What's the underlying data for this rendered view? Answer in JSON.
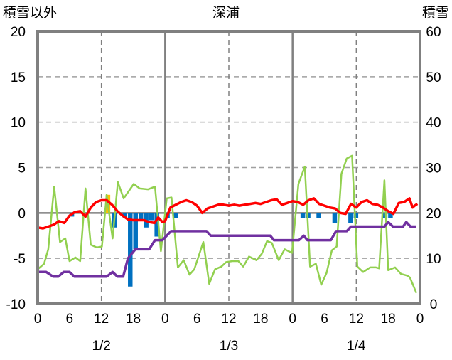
{
  "chart_data": {
    "type": "line",
    "title": "深浦",
    "ylabel_left": "積雪以外",
    "ylabel_right": "積雪",
    "left_axis": {
      "range": [
        -10,
        20
      ],
      "ticks": [
        "-10",
        "-5",
        "0",
        "5",
        "10",
        "15",
        "20"
      ]
    },
    "right_axis": {
      "range": [
        0,
        60
      ],
      "ticks": [
        "0",
        "10",
        "20",
        "30",
        "40",
        "50",
        "60"
      ]
    },
    "x_axis": {
      "range_hours": [
        0,
        72
      ],
      "tick_labels": [
        "0",
        "6",
        "12",
        "18",
        "0",
        "6",
        "12",
        "18",
        "0",
        "6",
        "12",
        "18",
        "0"
      ],
      "date_labels": [
        "1/2",
        "1/3",
        "1/4"
      ]
    },
    "grid": true,
    "colors": {
      "temp": "#ff0000",
      "green": "#92d050",
      "snow": "#7030a0",
      "bar_neg": "#0070c0",
      "bar_pos": "#ffc000",
      "axis": "#808080"
    },
    "series": [
      {
        "name": "red",
        "axis": "left",
        "points": [
          [
            0,
            -1.6
          ],
          [
            1,
            -1.7
          ],
          [
            2,
            -1.5
          ],
          [
            3,
            -1.3
          ],
          [
            4,
            -0.9
          ],
          [
            5,
            -1.1
          ],
          [
            6,
            -0.3
          ],
          [
            7,
            0.1
          ],
          [
            8,
            0.2
          ],
          [
            9,
            -0.4
          ],
          [
            10,
            0.6
          ],
          [
            11,
            1.2
          ],
          [
            12,
            1.4
          ],
          [
            13,
            1.4
          ],
          [
            14,
            0.9
          ],
          [
            15,
            0.2
          ],
          [
            16,
            -0.3
          ],
          [
            17,
            -0.7
          ],
          [
            18,
            -0.8
          ],
          [
            19,
            -0.8
          ],
          [
            20,
            -0.8
          ],
          [
            21,
            -1.0
          ],
          [
            22,
            -1.1
          ],
          [
            22.7,
            -0.5
          ],
          [
            23.5,
            -1.0
          ],
          [
            24,
            -0.9
          ],
          [
            25,
            0.6
          ],
          [
            26,
            0.9
          ],
          [
            27,
            1.2
          ],
          [
            28,
            1.4
          ],
          [
            29,
            1.2
          ],
          [
            30,
            0.8
          ],
          [
            31,
            0.0
          ],
          [
            32,
            0.5
          ],
          [
            33,
            0.7
          ],
          [
            34,
            0.9
          ],
          [
            35,
            0.9
          ],
          [
            36,
            0.8
          ],
          [
            37,
            0.9
          ],
          [
            38,
            0.8
          ],
          [
            39,
            0.9
          ],
          [
            40,
            1.0
          ],
          [
            41,
            1.1
          ],
          [
            42,
            1.0
          ],
          [
            43,
            1.2
          ],
          [
            44,
            1.4
          ],
          [
            45,
            1.5
          ],
          [
            46,
            0.9
          ],
          [
            47,
            1.1
          ],
          [
            48,
            1.3
          ],
          [
            49,
            1.2
          ],
          [
            50,
            0.9
          ],
          [
            51,
            1.4
          ],
          [
            52,
            1.6
          ],
          [
            53,
            1.0
          ],
          [
            54,
            0.8
          ],
          [
            55,
            0.6
          ],
          [
            56,
            0.5
          ],
          [
            57,
            0.0
          ],
          [
            58,
            -0.1
          ],
          [
            59,
            1.0
          ],
          [
            60,
            0.6
          ],
          [
            61,
            1.2
          ],
          [
            62,
            1.4
          ],
          [
            63,
            1.0
          ],
          [
            64,
            0.9
          ],
          [
            65,
            0.6
          ],
          [
            66,
            0.2
          ],
          [
            67,
            -0.1
          ],
          [
            68,
            1.1
          ],
          [
            69,
            1.2
          ],
          [
            70,
            1.6
          ],
          [
            70.6,
            0.6
          ],
          [
            71,
            0.8
          ],
          [
            71.5,
            1.0
          ]
        ]
      },
      {
        "name": "green",
        "axis": "left",
        "points": [
          [
            0,
            -6.2
          ],
          [
            1.2,
            -5.6
          ],
          [
            2,
            -4.0
          ],
          [
            3.1,
            2.9
          ],
          [
            4.2,
            -3.2
          ],
          [
            5.2,
            -2.8
          ],
          [
            6,
            -5.3
          ],
          [
            7.1,
            -4.9
          ],
          [
            8,
            -5.3
          ],
          [
            9,
            2.7
          ],
          [
            10,
            -3.5
          ],
          [
            11.1,
            -3.8
          ],
          [
            12.1,
            -3.7
          ],
          [
            13,
            2.0
          ],
          [
            14.1,
            -2.8
          ],
          [
            15.1,
            3.4
          ],
          [
            16.2,
            1.6
          ],
          [
            18.1,
            3.2
          ],
          [
            19.2,
            2.7
          ],
          [
            20.8,
            2.6
          ],
          [
            22.1,
            2.9
          ],
          [
            23.2,
            -4.2
          ],
          [
            24.3,
            1.6
          ],
          [
            25.2,
            1.7
          ],
          [
            26.4,
            -6.0
          ],
          [
            27.5,
            -5.2
          ],
          [
            28.6,
            -6.8
          ],
          [
            29.5,
            -6.2
          ],
          [
            31.2,
            -3.2
          ],
          [
            32.3,
            -7.8
          ],
          [
            33.4,
            -6.2
          ],
          [
            34.6,
            -5.9
          ],
          [
            35.5,
            -5.4
          ],
          [
            36.7,
            -5.3
          ],
          [
            37.8,
            -5.3
          ],
          [
            38.7,
            -5.9
          ],
          [
            39.8,
            -4.8
          ],
          [
            41.2,
            -5.2
          ],
          [
            42.2,
            -4.5
          ],
          [
            43.2,
            -3.1
          ],
          [
            44.1,
            -3.3
          ],
          [
            45.4,
            -5.2
          ],
          [
            46.5,
            -4.0
          ],
          [
            47.9,
            -4.4
          ],
          [
            49.1,
            3.2
          ],
          [
            50.3,
            5.1
          ],
          [
            51.3,
            -5.9
          ],
          [
            52.4,
            -5.6
          ],
          [
            53.4,
            -7.9
          ],
          [
            54.4,
            -6.6
          ],
          [
            55.4,
            -4.1
          ],
          [
            56.3,
            -3.7
          ],
          [
            57.2,
            4.3
          ],
          [
            58.2,
            6.0
          ],
          [
            59.2,
            6.3
          ],
          [
            60.2,
            -5.9
          ],
          [
            61.3,
            -6.5
          ],
          [
            62.6,
            -6.0
          ],
          [
            63.7,
            -6.0
          ],
          [
            64.3,
            -6.1
          ],
          [
            65.3,
            3.6
          ],
          [
            66,
            -6.3
          ],
          [
            67.3,
            -6.0
          ],
          [
            68.4,
            -6.7
          ],
          [
            69.6,
            -6.9
          ],
          [
            70.1,
            -7.1
          ],
          [
            71.3,
            -8.8
          ]
        ]
      },
      {
        "name": "snow-depth",
        "axis": "right",
        "points": [
          [
            0,
            7
          ],
          [
            1.6,
            7
          ],
          [
            2.9,
            6
          ],
          [
            3.9,
            6
          ],
          [
            4.9,
            7
          ],
          [
            6,
            7
          ],
          [
            6.9,
            6
          ],
          [
            13,
            6
          ],
          [
            14.1,
            7
          ],
          [
            15,
            6
          ],
          [
            16.1,
            6
          ],
          [
            17,
            10
          ],
          [
            18.4,
            12
          ],
          [
            21,
            12
          ],
          [
            22.1,
            14
          ],
          [
            23.5,
            14
          ],
          [
            25.1,
            16
          ],
          [
            31.8,
            16
          ],
          [
            32.6,
            15
          ],
          [
            43.8,
            15
          ],
          [
            44.5,
            14
          ],
          [
            49.2,
            14
          ],
          [
            50.1,
            15
          ],
          [
            50.8,
            14
          ],
          [
            55.2,
            14
          ],
          [
            56.2,
            16
          ],
          [
            58.2,
            16
          ],
          [
            59,
            17
          ],
          [
            65.3,
            17
          ],
          [
            66,
            18
          ],
          [
            66.9,
            17
          ],
          [
            68.8,
            17
          ],
          [
            69.4,
            18
          ],
          [
            70.2,
            17
          ],
          [
            71.3,
            17
          ]
        ]
      }
    ],
    "bars": [
      [
        6,
        -0.4
      ],
      [
        12.8,
        2.0
      ],
      [
        14,
        -1.6
      ],
      [
        16,
        -0.5
      ],
      [
        17,
        -8.1
      ],
      [
        18,
        -4.0
      ],
      [
        19,
        -0.8
      ],
      [
        20,
        -1.6
      ],
      [
        21,
        -0.8
      ],
      [
        22,
        -2.6
      ],
      [
        24,
        -0.6
      ],
      [
        25.5,
        -0.6
      ],
      [
        49.5,
        -0.6
      ],
      [
        50.5,
        -0.6
      ],
      [
        52.5,
        -0.6
      ],
      [
        55.5,
        -1.1
      ],
      [
        58.5,
        -1.1
      ],
      [
        59.5,
        -0.6
      ],
      [
        65,
        -0.6
      ],
      [
        66,
        -0.6
      ]
    ]
  }
}
